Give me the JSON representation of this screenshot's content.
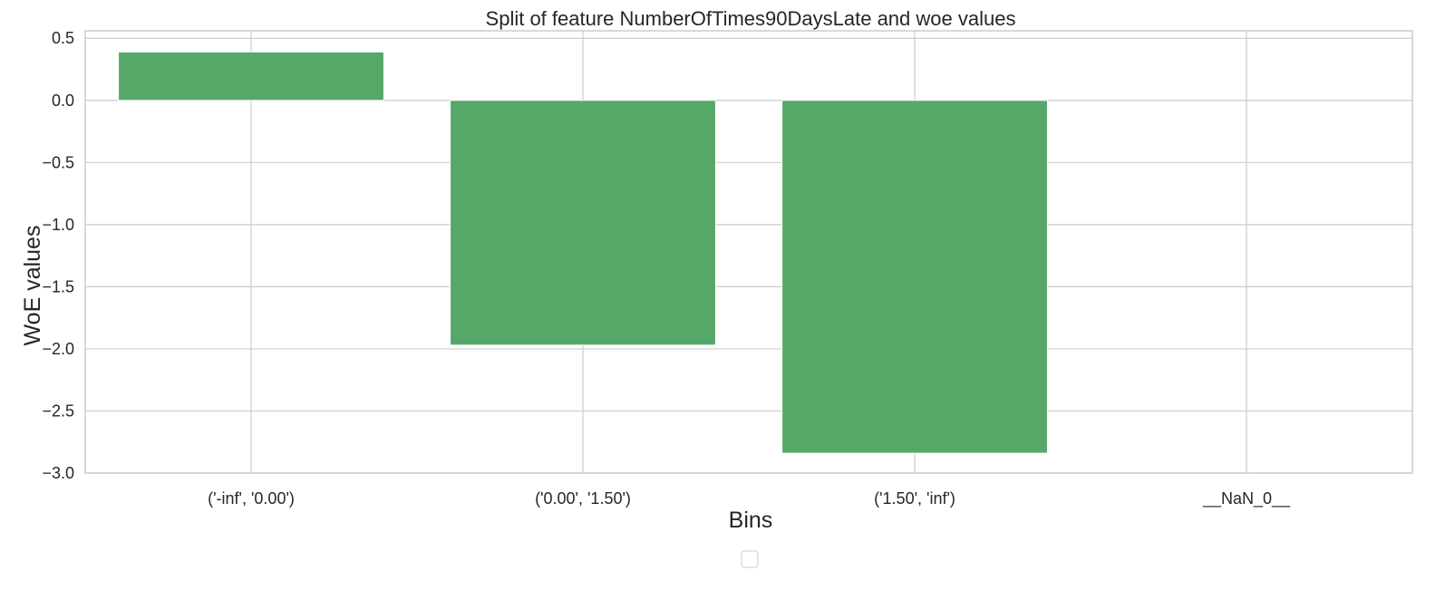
{
  "chart_data": {
    "type": "bar",
    "title": "Split of feature NumberOfTimes90DaysLate and woe values",
    "xlabel": "Bins",
    "ylabel": "WoE values",
    "categories": [
      "('-inf', '0.00')",
      "('0.00', '1.50')",
      "('1.50', 'inf')",
      "__NaN_0__"
    ],
    "values": [
      0.39,
      -1.97,
      -2.84,
      0.0
    ],
    "ylim": [
      -3.0,
      0.56
    ],
    "yticks": [
      0.5,
      0.0,
      -0.5,
      -1.0,
      -1.5,
      -2.0,
      -2.5,
      -3.0
    ],
    "ytick_labels": [
      "0.5",
      "0.0",
      "−0.5",
      "−1.0",
      "−1.5",
      "−2.0",
      "−2.5",
      "−3.0"
    ],
    "grid": true,
    "bar_color": "#55a868",
    "legend": {
      "placement": "bottom-center",
      "entries": []
    }
  },
  "colors": {
    "grid": "#cccccc",
    "axis": "#cccccc",
    "text": "#262626"
  }
}
